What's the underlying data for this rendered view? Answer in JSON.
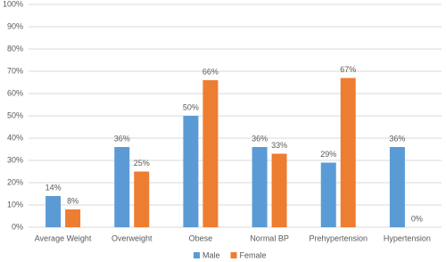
{
  "chart_data": {
    "type": "bar",
    "categories": [
      "Average Weight",
      "Overweight",
      "Obese",
      "Normal BP",
      "Prehypertension",
      "Hypertension"
    ],
    "series": [
      {
        "name": "Male",
        "color": "#5b9bd5",
        "values": [
          14,
          36,
          50,
          36,
          29,
          36
        ],
        "value_labels": [
          "14%",
          "36%",
          "50%",
          "36%",
          "29%",
          "36%"
        ]
      },
      {
        "name": "Female",
        "color": "#ed7d31",
        "values": [
          8,
          25,
          66,
          33,
          67,
          0
        ],
        "value_labels": [
          "8%",
          "25%",
          "66%",
          "33%",
          "67%",
          "0%"
        ]
      }
    ],
    "ylim": [
      0,
      100
    ],
    "yticks": [
      {
        "value": 0,
        "label": "0%"
      },
      {
        "value": 10,
        "label": "10%"
      },
      {
        "value": 20,
        "label": "20%"
      },
      {
        "value": 30,
        "label": "30%"
      },
      {
        "value": 40,
        "label": "40%"
      },
      {
        "value": 50,
        "label": "50%"
      },
      {
        "value": 60,
        "label": "60%"
      },
      {
        "value": 70,
        "label": "70%"
      },
      {
        "value": 80,
        "label": "80%"
      },
      {
        "value": 90,
        "label": "90%"
      },
      {
        "value": 100,
        "label": "100%"
      }
    ],
    "grid": true,
    "legend": "bottom"
  }
}
